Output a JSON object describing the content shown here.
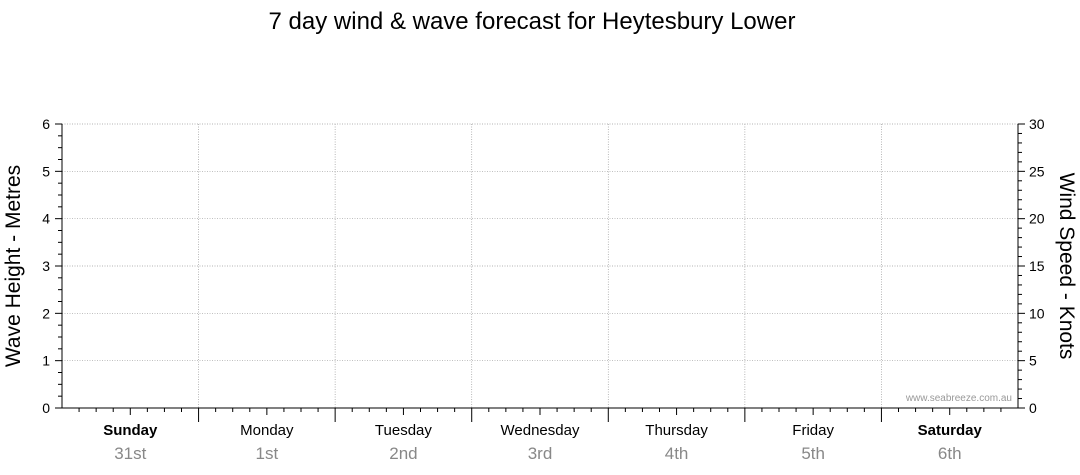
{
  "chart_data": {
    "type": "line",
    "title": "7 day wind & wave forecast for Heytesbury Lower",
    "ylabel_left": "Wave Height - Metres",
    "ylabel_right": "Wind Speed - Knots",
    "ylim_left": [
      0,
      6
    ],
    "ylim_right": [
      0,
      30
    ],
    "yticks_left": [
      "0",
      "1",
      "2",
      "3",
      "4",
      "5",
      "6"
    ],
    "yticks_right": [
      "0",
      "5",
      "10",
      "15",
      "20",
      "25",
      "30"
    ],
    "grid": true,
    "days": [
      {
        "name": "Sunday",
        "date": "31st",
        "bold": true
      },
      {
        "name": "Monday",
        "date": "1st",
        "bold": false
      },
      {
        "name": "Tuesday",
        "date": "2nd",
        "bold": false
      },
      {
        "name": "Wednesday",
        "date": "3rd",
        "bold": false
      },
      {
        "name": "Thursday",
        "date": "4th",
        "bold": false
      },
      {
        "name": "Friday",
        "date": "5th",
        "bold": false
      },
      {
        "name": "Saturday",
        "date": "6th",
        "bold": true
      }
    ],
    "series": [],
    "watermark": "www.seabreeze.com.au"
  }
}
